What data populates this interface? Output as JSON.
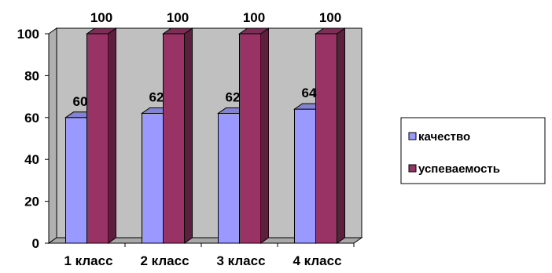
{
  "chart_data": {
    "type": "bar",
    "variant": "3d-clustered-column",
    "categories": [
      "1 класс",
      "2 класс",
      "3 класс",
      "4 класс"
    ],
    "series": [
      {
        "name": "качество",
        "values": [
          60,
          62,
          62,
          64
        ],
        "color": "#9999ff"
      },
      {
        "name": "успеваемость",
        "values": [
          100,
          100,
          100,
          100
        ],
        "color": "#993366"
      }
    ],
    "ylim": [
      0,
      100
    ],
    "yticks": [
      0,
      20,
      40,
      60,
      80,
      100
    ],
    "grid": false,
    "legend": "right",
    "data_labels": true,
    "wall_color": "#c0c0c0"
  }
}
